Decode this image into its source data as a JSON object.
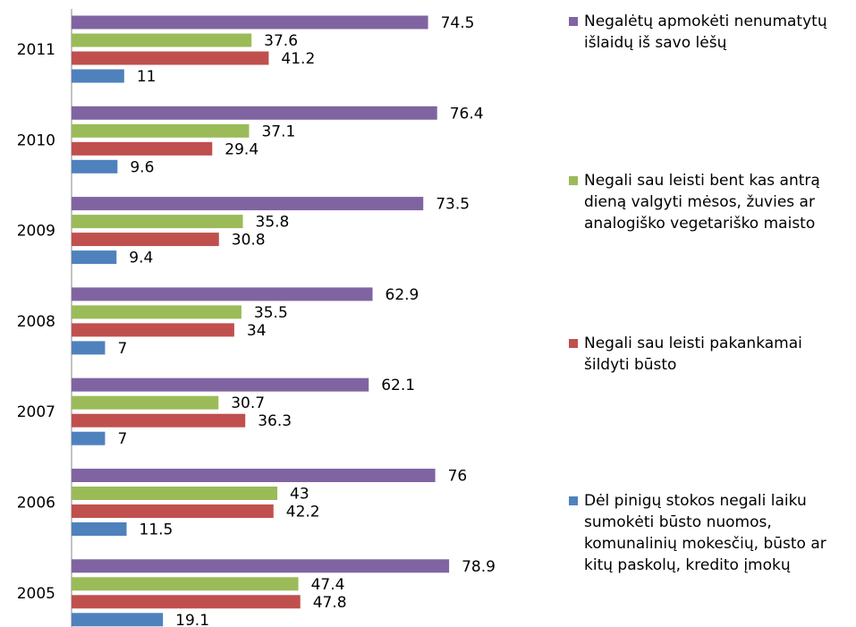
{
  "chart_data": {
    "type": "bar",
    "orientation": "horizontal",
    "categories": [
      "2011",
      "2010",
      "2009",
      "2008",
      "2007",
      "2006",
      "2005"
    ],
    "series": [
      {
        "name": "Negalėtų apmokėti nenumatytų išlaidų iš savo lėšų",
        "color": "#8064a2",
        "values": [
          74.5,
          76.4,
          73.5,
          62.9,
          62.1,
          76,
          78.9
        ]
      },
      {
        "name": "Negali sau leisti bent kas antrą dieną valgyti mėsos, žuvies ar analogiško vegetariško maisto",
        "color": "#9bbb59",
        "values": [
          37.6,
          37.1,
          35.8,
          35.5,
          30.7,
          43,
          47.4
        ]
      },
      {
        "name": "Negali sau leisti pakankamai šildyti būsto",
        "color": "#c0504d",
        "values": [
          41.2,
          29.4,
          30.8,
          34,
          36.3,
          42.2,
          47.8
        ]
      },
      {
        "name": "Dėl pinigų stokos negali laiku sumokėti būsto nuomos, komunalinių mokesčių, būsto ar kitų paskolų, kredito įmokų",
        "color": "#4f81bd",
        "values": [
          11,
          9.6,
          9.4,
          7,
          7,
          11.5,
          19.1
        ]
      }
    ],
    "xlim": [
      0,
      100
    ],
    "legend": "right"
  }
}
